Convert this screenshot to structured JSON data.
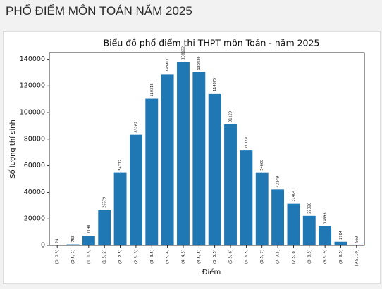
{
  "header": {
    "title": "PHỔ ĐIỂM MÔN TOÁN NĂM 2025"
  },
  "chart_data": {
    "type": "bar",
    "title": "Biểu đồ phổ điểm thi THPT môn Toán - năm 2025",
    "x_label": "Điểm",
    "y_label": "Số lượng thí sinh",
    "categories": [
      "[0, 0.5]",
      "(0.5, 1]",
      "(1, 1.5]",
      "(1.5, 2]",
      "(2, 2.5]",
      "(2.5, 3]",
      "(3, 3.5]",
      "(3.5, 4]",
      "(4, 4.5]",
      "(4.5, 5]",
      "(5, 5.5]",
      "(5.5, 6]",
      "(6, 6.5]",
      "(6.5, 7]",
      "(7, 7.5]",
      "(7.5, 8]",
      "(8, 8.5]",
      "(8.5, 9]",
      "(9, 9.5]",
      "(9.5, 10]"
    ],
    "values": [
      24,
      753,
      7190,
      26579,
      54712,
      83262,
      110318,
      128911,
      138122,
      130439,
      114375,
      91129,
      71379,
      54668,
      42149,
      31404,
      22328,
      14693,
      2784,
      553
    ],
    "color": "#1f77b4",
    "ylim": [
      0,
      145000
    ],
    "yticks": [
      0,
      20000,
      40000,
      60000,
      80000,
      100000,
      120000,
      140000
    ]
  }
}
